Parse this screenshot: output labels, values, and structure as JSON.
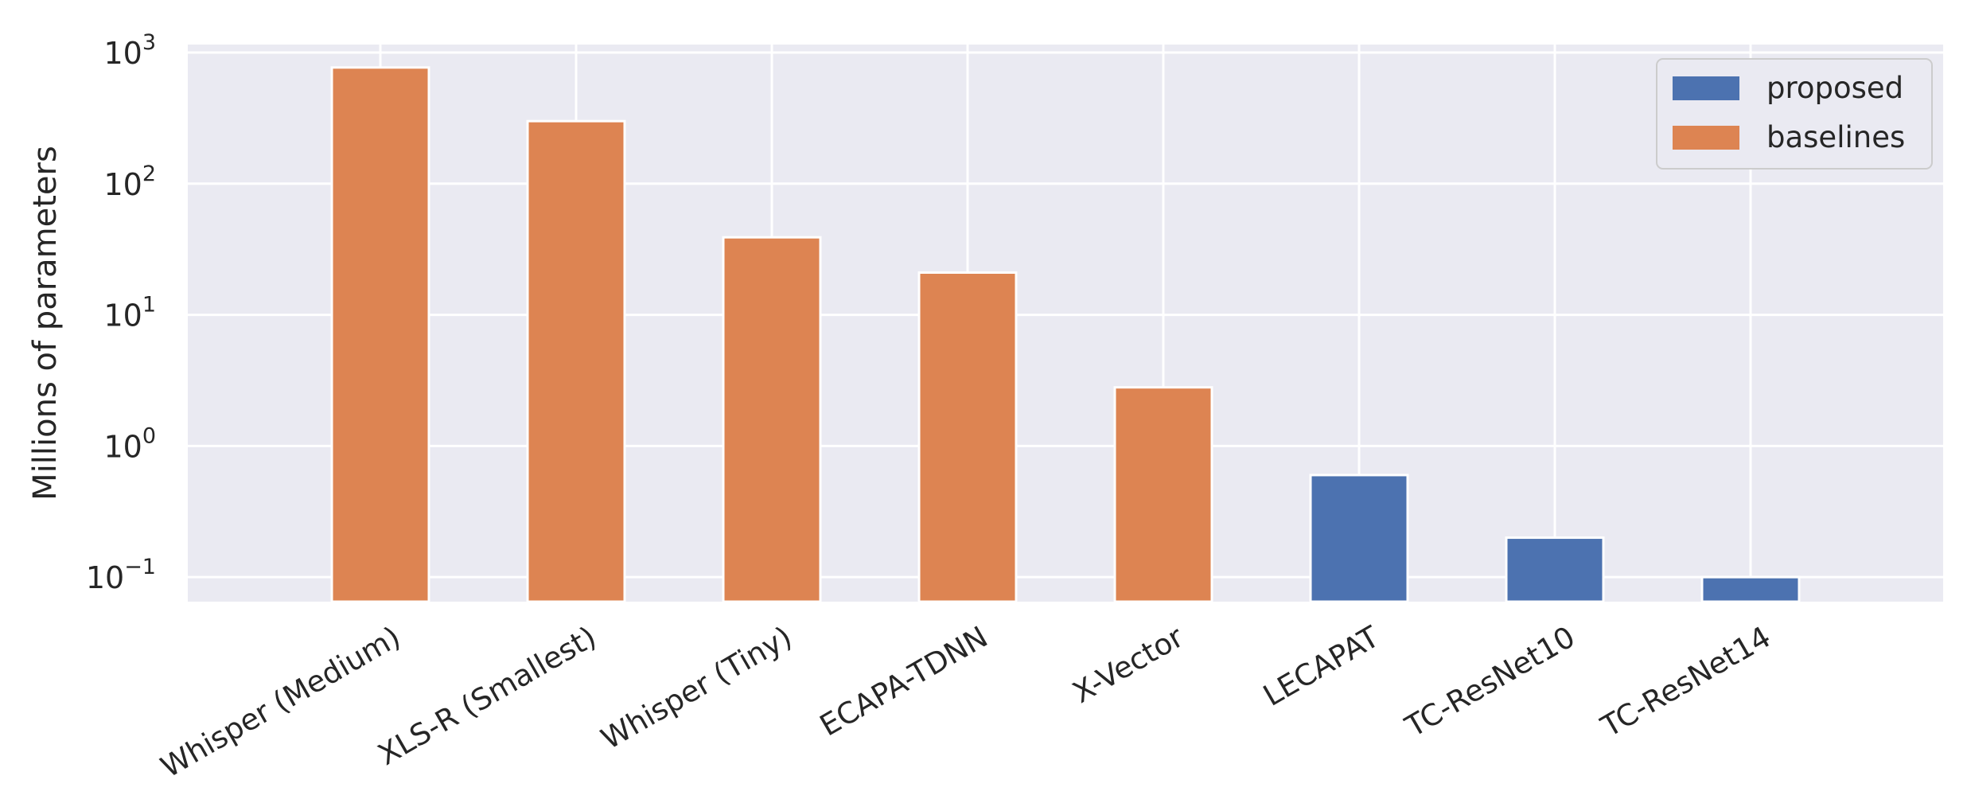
{
  "chart_data": {
    "type": "bar",
    "title": "",
    "xlabel": "",
    "ylabel": "Millions of parameters",
    "yscale": "log",
    "ylim": [
      0.065,
      1150
    ],
    "yticks": [
      {
        "value": 0.1,
        "exp": "−1"
      },
      {
        "value": 1,
        "exp": "0"
      },
      {
        "value": 10,
        "exp": "1"
      },
      {
        "value": 100,
        "exp": "2"
      },
      {
        "value": 1000,
        "exp": "3"
      }
    ],
    "ytick_base": "10",
    "grid": true,
    "legend_position": "top-right",
    "categories": [
      "Whisper (Medium)",
      "XLS-R (Smallest)",
      "Whisper (Tiny)",
      "ECAPA-TDNN",
      "X-Vector",
      "LECAPAT",
      "TC-ResNet10",
      "TC-ResNet14"
    ],
    "values": [
      769,
      300,
      39,
      21,
      2.8,
      0.6,
      0.2,
      0.1
    ],
    "groups": [
      "baselines",
      "baselines",
      "baselines",
      "baselines",
      "baselines",
      "proposed",
      "proposed",
      "proposed"
    ],
    "series": [
      {
        "name": "proposed",
        "color": "#4c72b0"
      },
      {
        "name": "baselines",
        "color": "#dd8452"
      }
    ],
    "background_color": "#eaeaf2"
  }
}
